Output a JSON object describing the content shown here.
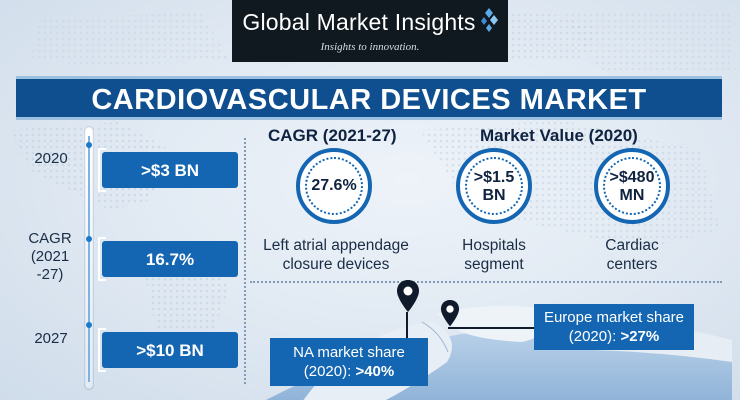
{
  "header": {
    "brand": "Global Market Insights",
    "tagline": "Insights to innovation."
  },
  "title": "CARDIOVASCULAR DEVICES MARKET",
  "timeline": {
    "items": [
      {
        "label": "2020",
        "value": ">$3 BN"
      },
      {
        "label": "CAGR\n(2021\n-27)",
        "label_lines": [
          "CAGR",
          "(2021",
          "-27)"
        ],
        "value": "16.7%"
      },
      {
        "label": "2027",
        "value": ">$10 BN"
      }
    ]
  },
  "cagr_section": {
    "heading": "CAGR (2021-27)",
    "value": "27.6%",
    "caption_lines": [
      "Left atrial appendage",
      "closure devices"
    ]
  },
  "market_value_section": {
    "heading": "Market Value (2020)",
    "items": [
      {
        "value_lines": [
          ">$1.5",
          "BN"
        ],
        "caption_lines": [
          "Hospitals",
          "segment"
        ]
      },
      {
        "value_lines": [
          ">$480",
          "MN"
        ],
        "caption_lines": [
          "Cardiac",
          "centers"
        ]
      }
    ]
  },
  "regional": {
    "na": {
      "label_lines": [
        "NA market share",
        "(2020): "
      ],
      "value": ">40%"
    },
    "europe": {
      "label_lines": [
        "Europe market share",
        "(2020): "
      ],
      "value": ">27%"
    }
  },
  "colors": {
    "primary_blue": "#1466b2",
    "banner_blue": "#0f4f8f",
    "logo_bg": "#101820",
    "background": "#dfe8f2"
  },
  "icons": [
    "logo-mark-icon",
    "location-pin-icon",
    "location-pin-icon"
  ]
}
